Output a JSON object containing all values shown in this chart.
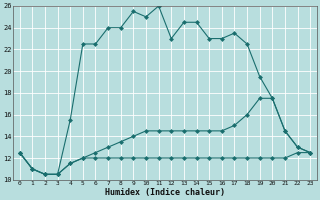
{
  "xlabel": "Humidex (Indice chaleur)",
  "xlim": [
    -0.5,
    23.5
  ],
  "ylim": [
    10,
    26
  ],
  "yticks": [
    10,
    12,
    14,
    16,
    18,
    20,
    22,
    24,
    26
  ],
  "xticks": [
    0,
    1,
    2,
    3,
    4,
    5,
    6,
    7,
    8,
    9,
    10,
    11,
    12,
    13,
    14,
    15,
    16,
    17,
    18,
    19,
    20,
    21,
    22,
    23
  ],
  "bg_color": "#b8dede",
  "line_color": "#1a6e6e",
  "grid_color": "#ffffff",
  "line1_x": [
    0,
    1,
    2,
    3,
    4,
    5,
    6,
    7,
    8,
    9,
    10,
    11,
    12,
    13,
    14,
    15,
    16,
    17,
    18,
    19,
    20,
    21,
    22,
    23
  ],
  "line1_y": [
    12.5,
    11.0,
    10.5,
    10.5,
    15.5,
    22.5,
    22.5,
    24.0,
    24.0,
    25.5,
    25.0,
    26.0,
    23.0,
    24.5,
    24.5,
    23.0,
    23.0,
    23.5,
    22.5,
    19.5,
    17.5,
    14.5,
    13.0,
    12.5
  ],
  "line2_x": [
    0,
    1,
    2,
    3,
    4,
    5,
    6,
    7,
    8,
    9,
    10,
    11,
    12,
    13,
    14,
    15,
    16,
    17,
    18,
    19,
    20,
    21,
    22,
    23
  ],
  "line2_y": [
    12.5,
    11.0,
    10.5,
    10.5,
    11.5,
    12.0,
    12.0,
    12.0,
    12.0,
    12.0,
    12.0,
    12.0,
    12.0,
    12.0,
    12.0,
    12.0,
    12.0,
    12.0,
    12.0,
    12.0,
    12.0,
    12.0,
    12.5,
    12.5
  ],
  "line3_x": [
    0,
    1,
    2,
    3,
    4,
    5,
    6,
    7,
    8,
    9,
    10,
    11,
    12,
    13,
    14,
    15,
    16,
    17,
    18,
    19,
    20,
    21,
    22,
    23
  ],
  "line3_y": [
    12.5,
    11.0,
    10.5,
    10.5,
    11.5,
    12.0,
    12.5,
    13.0,
    13.5,
    14.0,
    14.5,
    14.5,
    14.5,
    14.5,
    14.5,
    14.5,
    14.5,
    15.0,
    16.0,
    17.5,
    17.5,
    14.5,
    13.0,
    12.5
  ]
}
